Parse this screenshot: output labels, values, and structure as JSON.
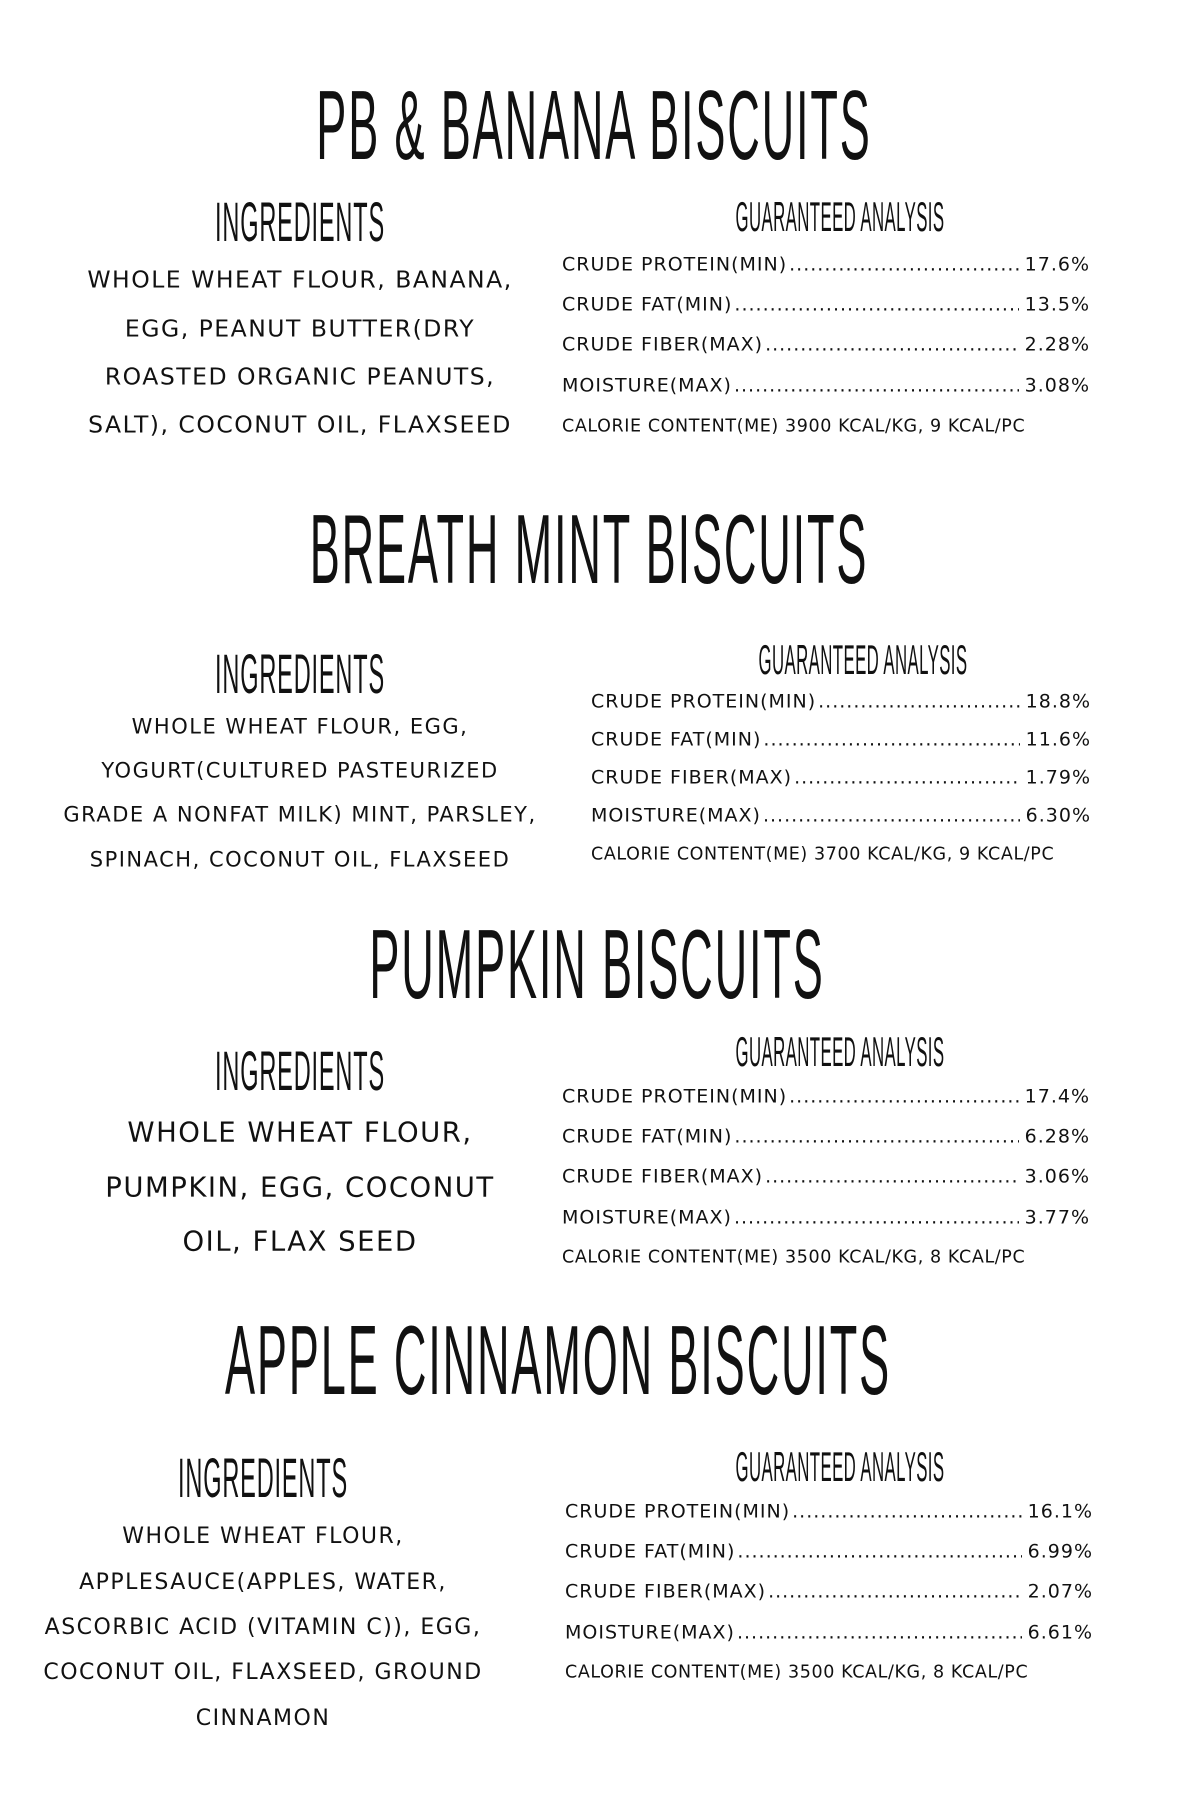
{
  "sections": [
    {
      "title": "PB & BANANA BISCUITS",
      "ingredients_heading": "INGREDIENTS",
      "ingredients_lines": [
        "WHOLE WHEAT FLOUR, BANANA,",
        "EGG, PEANUT BUTTER(DRY",
        "ROASTED ORGANIC PEANUTS,",
        "SALT), COCONUT OIL, FLAXSEED"
      ],
      "analysis_heading": "GUARANTEED ANALYSIS",
      "analysis": [
        {
          "label": "CRUDE PROTEIN(MIN)",
          "value": "17.6%"
        },
        {
          "label": "CRUDE FAT(MIN)",
          "value": "13.5%"
        },
        {
          "label": "CRUDE FIBER(MAX)",
          "value": "2.28%"
        },
        {
          "label": "MOISTURE(MAX)",
          "value": "3.08%"
        }
      ],
      "calorie": "CALORIE CONTENT(ME) 3900 KCAL/KG, 9 KCAL/PC"
    },
    {
      "title": "BREATH MINT BISCUITS",
      "ingredients_heading": "INGREDIENTS",
      "ingredients_lines": [
        "WHOLE WHEAT FLOUR, EGG,",
        "YOGURT(CULTURED PASTEURIZED",
        "GRADE A NONFAT MILK) MINT, PARSLEY,",
        "SPINACH, COCONUT OIL, FLAXSEED"
      ],
      "analysis_heading": "GUARANTEED ANALYSIS",
      "analysis": [
        {
          "label": "CRUDE PROTEIN(MIN)",
          "value": "18.8%"
        },
        {
          "label": "CRUDE FAT(MIN)",
          "value": "11.6%"
        },
        {
          "label": "CRUDE FIBER(MAX)",
          "value": "1.79%"
        },
        {
          "label": "MOISTURE(MAX)",
          "value": "6.30%"
        }
      ],
      "calorie": "CALORIE CONTENT(ME) 3700 KCAL/KG, 9 KCAL/PC"
    },
    {
      "title": "PUMPKIN BISCUITS",
      "ingredients_heading": "INGREDIENTS",
      "ingredients_lines": [
        "WHOLE WHEAT FLOUR,",
        "PUMPKIN, EGG, COCONUT",
        "OIL, FLAX SEED"
      ],
      "analysis_heading": "GUARANTEED ANALYSIS",
      "analysis": [
        {
          "label": "CRUDE PROTEIN(MIN)",
          "value": "17.4%"
        },
        {
          "label": "CRUDE FAT(MIN)",
          "value": "6.28%"
        },
        {
          "label": "CRUDE FIBER(MAX)",
          "value": "3.06%"
        },
        {
          "label": "MOISTURE(MAX)",
          "value": "3.77%"
        }
      ],
      "calorie": "CALORIE CONTENT(ME) 3500 KCAL/KG, 8 KCAL/PC"
    },
    {
      "title": "APPLE CINNAMON BISCUITS",
      "ingredients_heading": "INGREDIENTS",
      "ingredients_lines": [
        "WHOLE WHEAT FLOUR,",
        "APPLESAUCE(APPLES, WATER,",
        "ASCORBIC ACID (VITAMIN C)), EGG,",
        "COCONUT OIL, FLAXSEED, GROUND",
        "CINNAMON"
      ],
      "analysis_heading": "GUARANTEED ANALYSIS",
      "analysis": [
        {
          "label": "CRUDE PROTEIN(MIN)",
          "value": "16.1%"
        },
        {
          "label": "CRUDE FAT(MIN)",
          "value": "6.99%"
        },
        {
          "label": "CRUDE FIBER(MAX)",
          "value": "2.07%"
        },
        {
          "label": "MOISTURE(MAX)",
          "value": "6.61%"
        }
      ],
      "calorie": "CALORIE CONTENT(ME) 3500 KCAL/KG, 8 KCAL/PC"
    }
  ]
}
